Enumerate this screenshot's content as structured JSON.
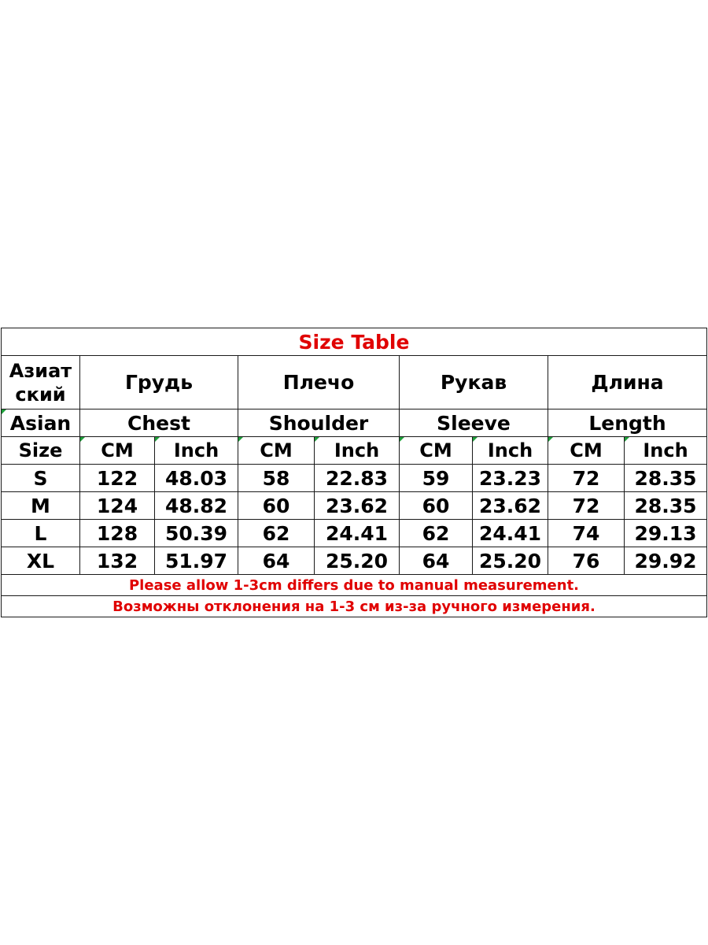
{
  "title": "Size Table",
  "header_ru": {
    "size": "Азиат ский",
    "chest": "Грудь",
    "shoulder": "Плечо",
    "sleeve": "Рукав",
    "length": "Длина"
  },
  "header_en": {
    "size": "Asian",
    "chest": "Chest",
    "shoulder": "Shoulder",
    "sleeve": "Sleeve",
    "length": "Length"
  },
  "units": {
    "size": "Size",
    "cm": "CM",
    "inch": "Inch"
  },
  "rows": [
    {
      "size": "S",
      "chest_cm": "122",
      "chest_in": "48.03",
      "shoulder_cm": "58",
      "shoulder_in": "22.83",
      "sleeve_cm": "59",
      "sleeve_in": "23.23",
      "length_cm": "72",
      "length_in": "28.35"
    },
    {
      "size": "M",
      "chest_cm": "124",
      "chest_in": "48.82",
      "shoulder_cm": "60",
      "shoulder_in": "23.62",
      "sleeve_cm": "60",
      "sleeve_in": "23.62",
      "length_cm": "72",
      "length_in": "28.35"
    },
    {
      "size": "L",
      "chest_cm": "128",
      "chest_in": "50.39",
      "shoulder_cm": "62",
      "shoulder_in": "24.41",
      "sleeve_cm": "62",
      "sleeve_in": "24.41",
      "length_cm": "74",
      "length_in": "29.13"
    },
    {
      "size": "XL",
      "chest_cm": "132",
      "chest_in": "51.97",
      "shoulder_cm": "64",
      "shoulder_in": "25.20",
      "sleeve_cm": "64",
      "sleeve_in": "25.20",
      "length_cm": "76",
      "length_in": "29.92"
    }
  ],
  "notes": {
    "en": "Please allow 1-3cm differs due to manual measurement.",
    "ru": "Возможны отклонения на 1-3 см из-за ручного измерения."
  },
  "colors": {
    "accent_red": "#e00000",
    "text": "#000000",
    "border": "#1a1a1a"
  }
}
